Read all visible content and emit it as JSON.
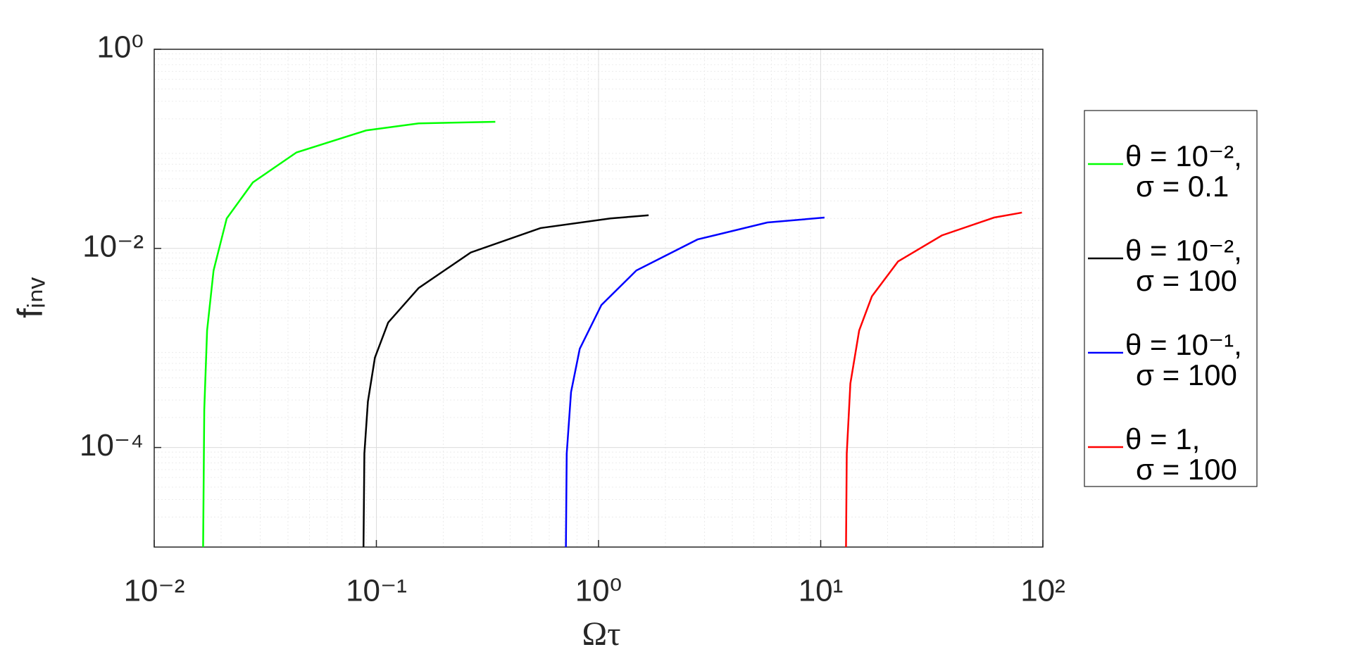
{
  "chart_data": {
    "type": "line",
    "xlabel": "Ωτ",
    "ylabel": "fᵢₙᵥ",
    "xscale": "log",
    "yscale": "log",
    "grid": true,
    "minor_grid": true,
    "legend": "outside-right",
    "xlim": [
      0.01,
      100
    ],
    "ylim": [
      1e-05,
      1
    ],
    "xticks": [
      {
        "value": 0.01,
        "label": "10⁻²"
      },
      {
        "value": 0.1,
        "label": "10⁻¹"
      },
      {
        "value": 1,
        "label": "10⁰"
      },
      {
        "value": 10,
        "label": "10¹"
      },
      {
        "value": 100,
        "label": "10²"
      }
    ],
    "yticks": [
      {
        "value": 0.0001,
        "label": "10⁻⁴"
      },
      {
        "value": 0.01,
        "label": "10⁻²"
      },
      {
        "value": 1,
        "label": "10⁰"
      }
    ],
    "series": [
      {
        "name": "θ = 10⁻², σ = 0.1",
        "color": "#00ff00",
        "x": [
          0.0166,
          0.0168,
          0.0173,
          0.0185,
          0.0212,
          0.0278,
          0.0437,
          0.0899,
          0.155,
          0.343
        ],
        "values": [
          1e-05,
          0.00024,
          0.0015,
          0.006,
          0.02,
          0.046,
          0.092,
          0.153,
          0.18,
          0.187
        ]
      },
      {
        "name": "θ = 10⁻², σ = 100",
        "color": "#000000",
        "x": [
          0.0875,
          0.0883,
          0.0916,
          0.0985,
          0.113,
          0.155,
          0.266,
          0.548,
          1.13,
          1.68
        ],
        "values": [
          1e-05,
          8.7e-05,
          0.00029,
          0.0008,
          0.0018,
          0.004,
          0.0091,
          0.016,
          0.02,
          0.0215
        ]
      },
      {
        "name": "θ = 10⁻¹, σ = 100",
        "color": "#0000ff",
        "x": [
          0.713,
          0.719,
          0.752,
          0.823,
          1.03,
          1.48,
          2.79,
          5.75,
          10.4
        ],
        "values": [
          1e-05,
          8.7e-05,
          0.00036,
          0.00098,
          0.0027,
          0.006,
          0.0123,
          0.0182,
          0.0204
        ]
      },
      {
        "name": "θ = 1, σ = 100",
        "color": "#ff0000",
        "x": [
          13.0,
          13.1,
          13.6,
          14.9,
          17.0,
          22.3,
          35.1,
          60.3,
          80.5
        ],
        "values": [
          1e-05,
          8.7e-05,
          0.00044,
          0.0015,
          0.0033,
          0.0074,
          0.0135,
          0.0204,
          0.0229
        ]
      }
    ]
  }
}
